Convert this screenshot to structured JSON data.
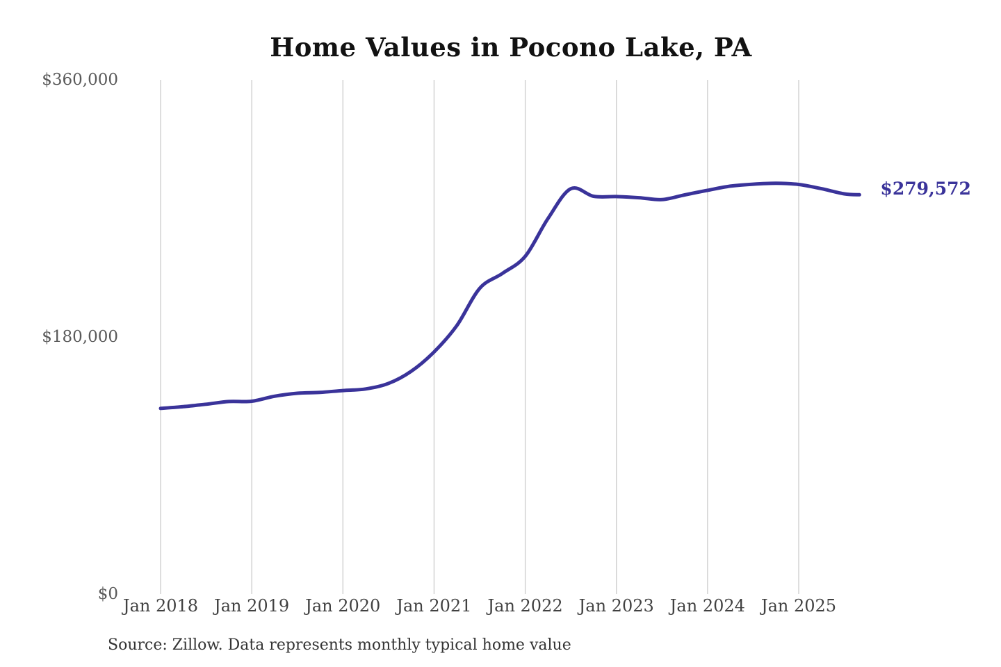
{
  "page": {
    "title": "Home Values in Pocono Lake, PA",
    "source_note": "Source: Zillow. Data represents monthly typical home value"
  },
  "chart_data": {
    "type": "line",
    "title": "Home Values in Pocono Lake, PA",
    "series_name": "Monthly typical home value",
    "unit": "USD",
    "ylabel": "",
    "xlabel": "",
    "ylim": [
      0,
      360000
    ],
    "grid": "vertical-only",
    "legend": "none",
    "line_color": "#3a339a",
    "gridline_color": "#cccccc",
    "end_label": {
      "text": "$279,572",
      "value": 279572,
      "color": "#3a339a"
    },
    "y_ticks": [
      {
        "label": "$360,000",
        "value": 360000
      },
      {
        "label": "$180,000",
        "value": 180000
      },
      {
        "label": "$0",
        "value": 0
      }
    ],
    "x_ticks": [
      {
        "label": "Jan 2018",
        "date": "2018-01"
      },
      {
        "label": "Jan 2019",
        "date": "2019-01"
      },
      {
        "label": "Jan 2020",
        "date": "2020-01"
      },
      {
        "label": "Jan 2021",
        "date": "2021-01"
      },
      {
        "label": "Jan 2022",
        "date": "2022-01"
      },
      {
        "label": "Jan 2023",
        "date": "2023-01"
      },
      {
        "label": "Jan 2024",
        "date": "2024-01"
      },
      {
        "label": "Jan 2025",
        "date": "2025-01"
      }
    ],
    "points": [
      [
        "2018-01",
        130000
      ],
      [
        "2018-04",
        131200
      ],
      [
        "2018-07",
        132900
      ],
      [
        "2018-10",
        134800
      ],
      [
        "2019-01",
        135000
      ],
      [
        "2019-04",
        138500
      ],
      [
        "2019-07",
        140600
      ],
      [
        "2019-10",
        141200
      ],
      [
        "2020-01",
        142500
      ],
      [
        "2020-04",
        143600
      ],
      [
        "2020-07",
        147500
      ],
      [
        "2020-10",
        156000
      ],
      [
        "2021-01",
        169500
      ],
      [
        "2021-04",
        188000
      ],
      [
        "2021-07",
        214000
      ],
      [
        "2021-10",
        224500
      ],
      [
        "2022-01",
        236500
      ],
      [
        "2022-04",
        263000
      ],
      [
        "2022-07",
        283800
      ],
      [
        "2022-10",
        278500
      ],
      [
        "2023-01",
        278300
      ],
      [
        "2023-04",
        277500
      ],
      [
        "2023-07",
        276200
      ],
      [
        "2023-10",
        279500
      ],
      [
        "2024-01",
        282700
      ],
      [
        "2024-04",
        285600
      ],
      [
        "2024-07",
        287000
      ],
      [
        "2024-10",
        287600
      ],
      [
        "2025-01",
        286800
      ],
      [
        "2025-04",
        283800
      ],
      [
        "2025-07",
        280200
      ],
      [
        "2025-09",
        279572
      ]
    ]
  }
}
